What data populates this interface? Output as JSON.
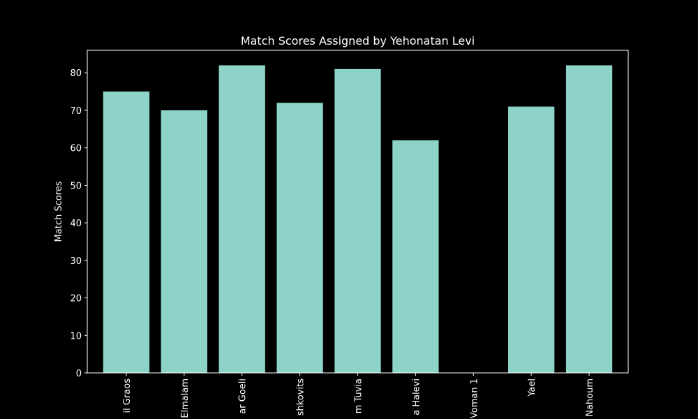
{
  "chart_data": {
    "type": "bar",
    "title": "Match Scores Assigned by Yehonatan Levi",
    "xlabel": "",
    "ylabel": "Match Scores",
    "categories": [
      "il Graos",
      "Elmalam",
      "ar Goeli",
      "shkovits",
      "m Tuvia",
      "a Halevi",
      "Voman 1",
      "Yael",
      "Nahoum"
    ],
    "values": [
      75,
      70,
      82,
      72,
      81,
      62,
      0,
      71,
      82
    ],
    "ylim": [
      0,
      86
    ],
    "yticks": [
      0,
      10,
      20,
      30,
      40,
      50,
      60,
      70,
      80
    ],
    "grid": false,
    "legend": "none",
    "bar_color": "#8dd3c7",
    "background_color": "#000000",
    "text_color": "#ffffff"
  }
}
